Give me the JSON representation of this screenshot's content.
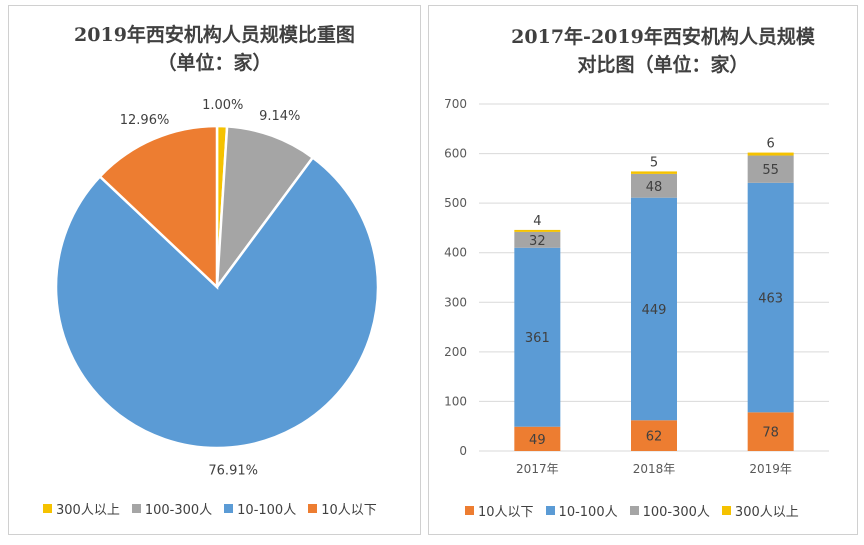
{
  "chart_data": [
    {
      "type": "pie",
      "title": "2019年西安机构人员规模比重图",
      "subtitle": "（单位：家）",
      "slices": [
        {
          "name": "300人以上",
          "value": 1.0,
          "label": "1.00%",
          "color": "#f5c200"
        },
        {
          "name": "100-300人",
          "value": 9.14,
          "label": "9.14%",
          "color": "#a5a5a5"
        },
        {
          "name": "10-100人",
          "value": 76.91,
          "label": "76.91%",
          "color": "#5b9bd5"
        },
        {
          "name": "10人以下",
          "value": 12.96,
          "label": "12.96%",
          "color": "#ed7d31"
        }
      ],
      "legend": [
        "300人以上",
        "100-300人",
        "10-100人",
        "10人以下"
      ],
      "legend_position": "bottom"
    },
    {
      "type": "bar",
      "stacked": true,
      "title": "2017年-2019年西安机构人员规模",
      "subtitle": "对比图（单位：家）",
      "categories": [
        "2017年",
        "2018年",
        "2019年"
      ],
      "series": [
        {
          "name": "10人以下",
          "values": [
            49,
            62,
            78
          ],
          "color": "#ed7d31"
        },
        {
          "name": "10-100人",
          "values": [
            361,
            449,
            463
          ],
          "color": "#5b9bd5"
        },
        {
          "name": "100-300人",
          "values": [
            32,
            48,
            55
          ],
          "color": "#a5a5a5"
        },
        {
          "name": "300人以上",
          "values": [
            4,
            5,
            6
          ],
          "color": "#f5c200"
        }
      ],
      "ylim": [
        0,
        700
      ],
      "yticks": [
        0,
        100,
        200,
        300,
        400,
        500,
        600,
        700
      ],
      "grid": true,
      "legend_position": "bottom"
    }
  ]
}
